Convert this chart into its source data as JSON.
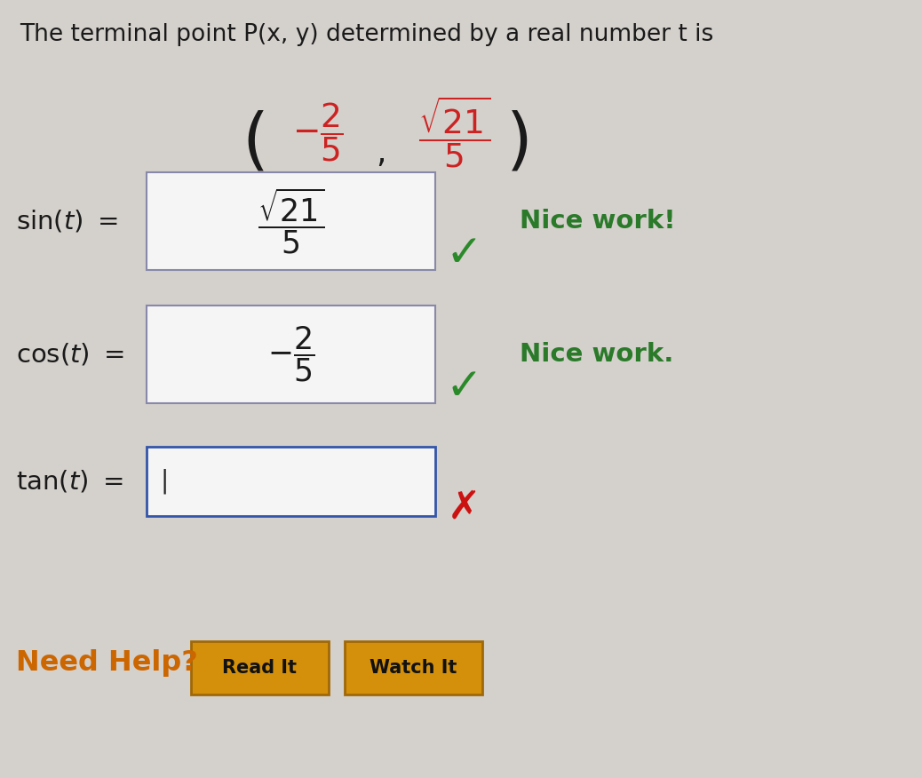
{
  "bg_color": "#d4d0cb",
  "title_text": "The terminal point P(x, y) determined by a real number t is",
  "title_fontsize": 19,
  "title_color": "#1a1a1a",
  "point_color": "#cc2222",
  "sin_feedback": "Nice work!",
  "cos_feedback": "Nice work.",
  "feedback_color": "#2a7a2a",
  "feedback_fontsize": 21,
  "label_fontsize": 21,
  "box_color": "#f5f5f5",
  "box_border_color": "#8888aa",
  "need_help_color": "#cc6600",
  "need_help_fontsize": 23,
  "button_bg": "#d4900a",
  "button_border": "#a06808",
  "button_text_color": "#111111",
  "check_color": "#2a8a2a",
  "x_color": "#cc1111"
}
